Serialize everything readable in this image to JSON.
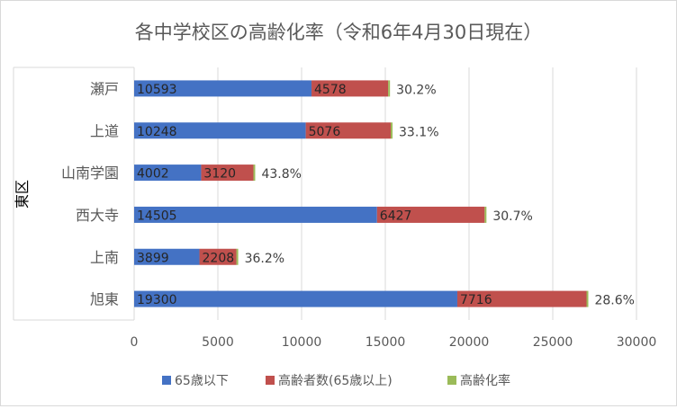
{
  "chart_data": {
    "type": "bar",
    "orientation": "horizontal",
    "stacked": true,
    "title": "各中学校区の高齢化率（令和6年4月30日現在）",
    "group_label": "東区",
    "categories": [
      "瀬戸",
      "上道",
      "山南学園",
      "西大寺",
      "上南",
      "旭東"
    ],
    "series": [
      {
        "name": "65歳以下",
        "color": "#4472c4",
        "values": [
          10593,
          10248,
          4002,
          14505,
          3899,
          19300
        ]
      },
      {
        "name": "高齢者数(65歳以上)",
        "color": "#c0504d",
        "values": [
          4578,
          5076,
          3120,
          6427,
          2208,
          7716
        ]
      },
      {
        "name": "高齢化率",
        "color": "#9bbb59",
        "labels": [
          "30.2%",
          "33.1%",
          "43.8%",
          "30.7%",
          "36.2%",
          "28.6%"
        ]
      }
    ],
    "xlim": [
      0,
      30000
    ],
    "xticks": [
      "0",
      "5000",
      "10000",
      "15000",
      "20000",
      "25000",
      "30000"
    ],
    "grid": true,
    "legend_position": "bottom"
  }
}
